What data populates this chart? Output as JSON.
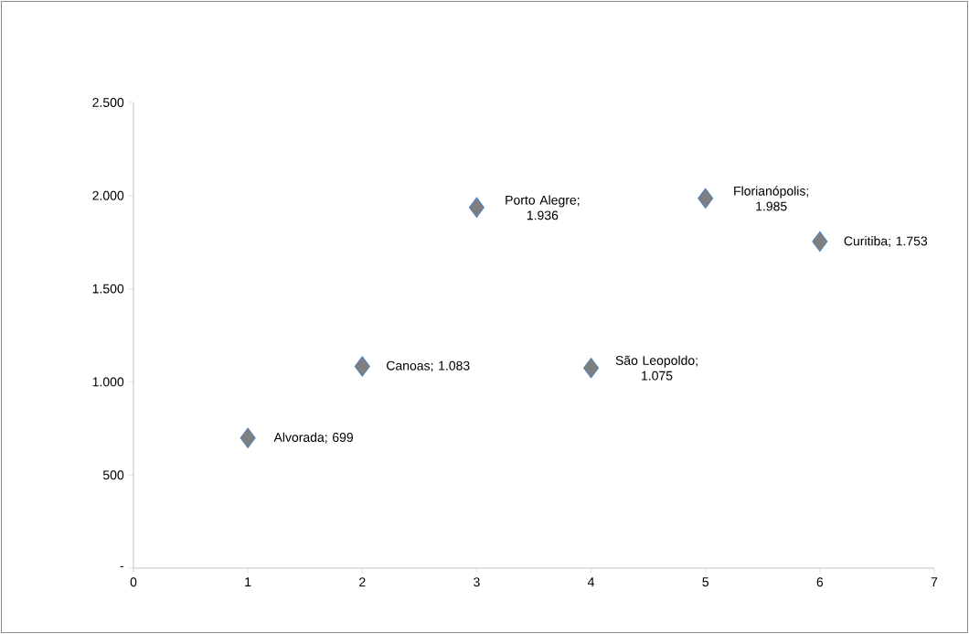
{
  "chart_data": {
    "type": "scatter",
    "x": [
      1,
      2,
      3,
      4,
      5,
      6
    ],
    "values": [
      699,
      1083,
      1936,
      1075,
      1985,
      1753
    ],
    "value_labels": [
      "Alvorada;  699",
      "Canoas;  1.083",
      "Porto Alegre;  1.936",
      "São Leopoldo;  1.075",
      "Florianópolis;  1.985",
      "Curitiba;  1.753"
    ],
    "color": "#7f7f7f",
    "marker": "diamond",
    "xlim": [
      0,
      7
    ],
    "ylim": [
      0,
      2500
    ],
    "xticks": [
      0,
      1,
      2,
      3,
      4,
      5,
      6,
      7
    ],
    "yticks": [
      {
        "value": 0,
        "label": "-"
      },
      {
        "value": 500,
        "label": "500"
      },
      {
        "value": 1000,
        "label": "1.000"
      },
      {
        "value": 1500,
        "label": "1.500"
      },
      {
        "value": 2000,
        "label": "2.000"
      },
      {
        "value": 2500,
        "label": "2.500"
      }
    ]
  }
}
